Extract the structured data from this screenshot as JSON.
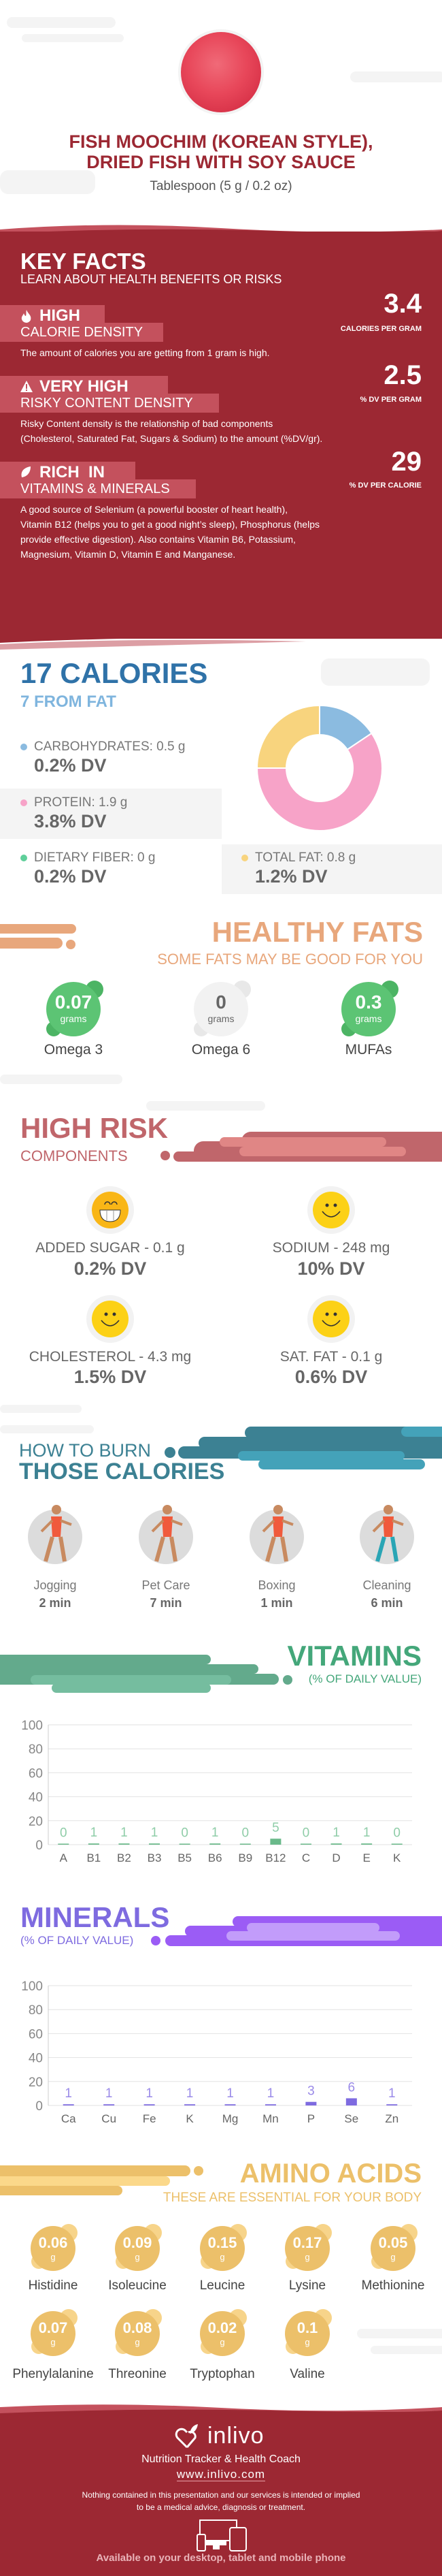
{
  "header": {
    "title_line1": "FISH MOOCHIM (KOREAN STYLE),",
    "title_line2": "DRIED FISH WITH SOY SAUCE",
    "serving": "Tablespoon (5 g / 0.2 oz)"
  },
  "key_facts": {
    "title": "KEY FACTS",
    "subtitle": "LEARN ABOUT HEALTH BENEFITS OR RISKS",
    "items": [
      {
        "icon": "flame-icon",
        "level": "HIGH",
        "label": "CALORIE DENSITY",
        "value": "3.4",
        "unit": "CALORIES PER GRAM",
        "desc": [
          "The amount of calories you are getting from 1 gram is high."
        ]
      },
      {
        "icon": "warning-icon",
        "level": "VERY HIGH",
        "label": "RISKY CONTENT DENSITY",
        "value": "2.5",
        "unit": "% DV PER GRAM",
        "desc": [
          "Risky Content density is the relationship of bad components",
          "(Cholesterol, Saturated Fat, Sugars & Sodium) to the amount (%DV/gr)."
        ]
      },
      {
        "icon": "leaf-icon",
        "level": "RICH  IN",
        "label": "VITAMINS & MINERALS",
        "value": "29",
        "unit": "% DV PER CALORIE",
        "desc": [
          "A good source of Selenium (a powerful booster of heart health),",
          "Vitamin B12 (helps you to get a good night’s sleep), Phosphorus (helps",
          "provide effective digestion). Also contains Vitamin B6, Potassium,",
          "Magnesium, Vitamin D, Vitamin E and Manganese."
        ]
      }
    ]
  },
  "calories": {
    "title": "17 CALORIES",
    "subtitle": "7 FROM FAT",
    "nutrients": [
      {
        "label": "CARBOHYDRATES: 0.5 g",
        "dv": "0.2% DV",
        "color": "#8bbbe0",
        "grams": 0.5
      },
      {
        "label": "PROTEIN: 1.9 g",
        "dv": "3.8% DV",
        "color": "#f7a3c8",
        "grams": 1.9
      },
      {
        "label": "DIETARY FIBER: 0 g",
        "dv": "0.2% DV",
        "color": "#5fcf9a",
        "grams": 0
      },
      {
        "label": "TOTAL FAT: 0.8 g",
        "dv": "1.2% DV",
        "color": "#f8d47e",
        "grams": 0.8
      }
    ]
  },
  "healthy_fats": {
    "title": "HEALTHY FATS",
    "subtitle": "SOME FATS MAY BE GOOD FOR YOU",
    "unit": "grams",
    "items": [
      {
        "value": "0.07",
        "name": "Omega 3",
        "active": true
      },
      {
        "value": "0",
        "name": "Omega 6",
        "active": false
      },
      {
        "value": "0.3",
        "name": "MUFAs",
        "active": true
      }
    ]
  },
  "high_risk": {
    "title": "HIGH RISK",
    "subtitle": "COMPONENTS",
    "items": [
      {
        "label": "ADDED SUGAR - 0.1 g",
        "dv": "0.2% DV",
        "face": "grin-face-icon"
      },
      {
        "label": "SODIUM - 248 mg",
        "dv": "10% DV",
        "face": "smile-face-icon"
      },
      {
        "label": "CHOLESTEROL - 4.3 mg",
        "dv": "1.5% DV",
        "face": "smile-face-icon"
      },
      {
        "label": "SAT. FAT - 0.1 g",
        "dv": "0.6% DV",
        "face": "smile-face-icon"
      }
    ]
  },
  "burn": {
    "title_line1": "HOW TO BURN",
    "title_line2": "THOSE CALORIES",
    "items": [
      {
        "name": "Jogging",
        "time": "2 min",
        "icon": "jogging-icon"
      },
      {
        "name": "Pet Care",
        "time": "7 min",
        "icon": "dog-walking-icon"
      },
      {
        "name": "Boxing",
        "time": "1 min",
        "icon": "boxing-icon"
      },
      {
        "name": "Cleaning",
        "time": "6 min",
        "icon": "cleaning-icon"
      }
    ]
  },
  "vitamins": {
    "title": "VITAMINS",
    "subtitle": "(% OF DAILY VALUE)"
  },
  "minerals": {
    "title": "MINERALS",
    "subtitle": "(% OF DAILY VALUE)"
  },
  "chart_data": [
    {
      "type": "bar",
      "categories": [
        "A",
        "B1",
        "B2",
        "B3",
        "B5",
        "B6",
        "B9",
        "B12",
        "C",
        "D",
        "E",
        "K"
      ],
      "values": [
        0,
        1,
        1,
        1,
        0,
        1,
        0,
        5,
        0,
        1,
        1,
        0
      ],
      "ylim": [
        0,
        100
      ],
      "yticks": [
        0,
        20,
        40,
        60,
        80,
        100
      ],
      "grid": true,
      "color": "#6ab98a"
    },
    {
      "type": "bar",
      "categories": [
        "Ca",
        "Cu",
        "Fe",
        "K",
        "Mg",
        "Mn",
        "P",
        "Se",
        "Zn"
      ],
      "values": [
        1,
        1,
        1,
        1,
        1,
        1,
        3,
        6,
        1
      ],
      "ylim": [
        0,
        100
      ],
      "yticks": [
        0,
        20,
        40,
        60,
        80,
        100
      ],
      "grid": true,
      "color": "#7e6be0"
    }
  ],
  "amino": {
    "title": "AMINO ACIDS",
    "subtitle": "THESE ARE ESSENTIAL FOR YOUR BODY",
    "unit": "g",
    "items": [
      {
        "value": "0.06",
        "name": "Histidine"
      },
      {
        "value": "0.09",
        "name": "Isoleucine"
      },
      {
        "value": "0.15",
        "name": "Leucine"
      },
      {
        "value": "0.17",
        "name": "Lysine"
      },
      {
        "value": "0.05",
        "name": "Methionine"
      },
      {
        "value": "0.07",
        "name": "Phenylalanine"
      },
      {
        "value": "0.08",
        "name": "Threonine"
      },
      {
        "value": "0.02",
        "name": "Tryptophan"
      },
      {
        "value": "0.1",
        "name": "Valine"
      }
    ]
  },
  "footer": {
    "brand": "inlivo",
    "tagline": "Nutrition Tracker & Health Coach",
    "url": "www.inlivo.com",
    "disclaimer_line1": "Nothing contained in this presentation and our services is intended or implied",
    "disclaimer_line2": "to be a medical advice, diagnosis or treatment.",
    "available": "Available on your desktop, tablet and mobile phone"
  },
  "colors": {
    "brand_red": "#9c2833",
    "calories_blue": "#2f72a8",
    "fats_orange": "#e8a77c",
    "fats_green": "#5cc474",
    "risk": "#c0666b",
    "burn_teal": "#3c8193",
    "vitamins_green": "#44a77a",
    "minerals_purple": "#7e6be0",
    "amino_yellow": "#ecc06a"
  }
}
